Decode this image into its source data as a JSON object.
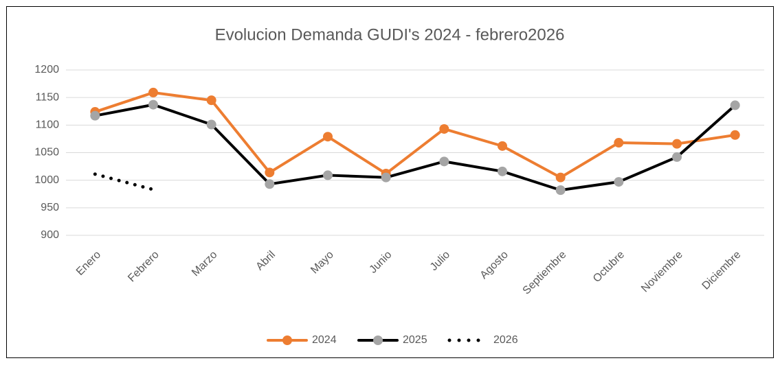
{
  "chart_data": {
    "type": "line",
    "title": "Evolucion Demanda GUDI's 2024 - febrero2026",
    "categories": [
      "Enero",
      "Febrero",
      "Marzo",
      "Abril",
      "Mayo",
      "Junio",
      "Julio",
      "Agosto",
      "Septiembre",
      "Octubre",
      "Noviembre",
      "Diciembre"
    ],
    "series": [
      {
        "name": "2024",
        "color": "#ed7d31",
        "style": "solid",
        "marker": true,
        "values": [
          1124,
          1159,
          1145,
          1014,
          1079,
          1012,
          1093,
          1062,
          1005,
          1068,
          1066,
          1082
        ]
      },
      {
        "name": "2025",
        "color": "#000000",
        "marker_color": "#a5a5a5",
        "style": "solid",
        "marker": true,
        "values": [
          1117,
          1137,
          1101,
          993,
          1009,
          1005,
          1034,
          1016,
          982,
          997,
          1042,
          1136
        ]
      },
      {
        "name": "2026",
        "color": "#000000",
        "style": "dotted",
        "marker": false,
        "values": [
          1011,
          983,
          null,
          null,
          null,
          null,
          null,
          null,
          null,
          null,
          null,
          null
        ]
      }
    ],
    "ylim": [
      900,
      1200
    ],
    "yticks": [
      900,
      950,
      1000,
      1050,
      1100,
      1150,
      1200
    ],
    "grid": true,
    "legend": "bottom"
  }
}
